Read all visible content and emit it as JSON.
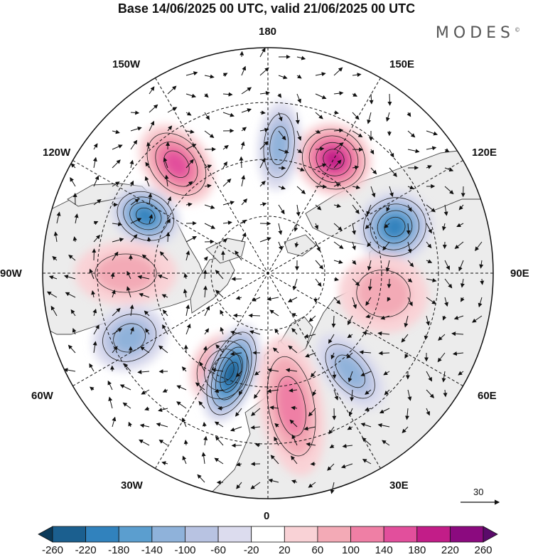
{
  "title": "Base 14/06/2025 00 UTC, valid 21/06/2025 00 UTC",
  "logo": "MODES",
  "logo_mark": "©",
  "longitude_labels": {
    "n180": "180",
    "w150": "150W",
    "e150": "150E",
    "w120": "120W",
    "e120": "120E",
    "w90": "90W",
    "e90": "90E",
    "w60": "60W",
    "e60": "60E",
    "w30": "30W",
    "e30": "30E",
    "s0": "0"
  },
  "reference_vector": "30",
  "colorbar": {
    "ticks": [
      "-260",
      "-220",
      "-180",
      "-140",
      "-100",
      "-60",
      "-20",
      "20",
      "60",
      "100",
      "140",
      "180",
      "220",
      "260"
    ],
    "colors": [
      "#0b3a5a",
      "#1b5f8f",
      "#3182bd",
      "#5b9ecf",
      "#8fb2da",
      "#b8c3e2",
      "#dcdcee",
      "#ffffff",
      "#f9d2d6",
      "#f3aab6",
      "#ef7fa5",
      "#e24f9c",
      "#c21d88",
      "#8b0a7f",
      "#5a0a6a"
    ]
  },
  "chart_data": {
    "type": "heatmap",
    "projection": "north polar stereographic",
    "variable_range": [
      -260,
      260
    ],
    "contour_interval": 40,
    "anomaly_centers": [
      {
        "name": "positive",
        "lon": 150,
        "level": 180
      },
      {
        "name": "negative",
        "lon": 110,
        "level": -180
      },
      {
        "name": "positive",
        "lon": -140,
        "level": 140
      },
      {
        "name": "negative",
        "lon": -115,
        "level": -180
      },
      {
        "name": "negative",
        "lon": 175,
        "level": -100
      },
      {
        "name": "positive",
        "lon": -25,
        "level": 140
      },
      {
        "name": "negative",
        "lon": -20,
        "level": -220
      },
      {
        "name": "positive",
        "lon": 10,
        "level": 100
      },
      {
        "name": "positive",
        "lon": 80,
        "level": 60
      },
      {
        "name": "negative",
        "lon": 40,
        "level": -100
      },
      {
        "name": "positive",
        "lon": -90,
        "level": 60
      },
      {
        "name": "negative",
        "lon": -65,
        "level": -100
      }
    ],
    "vector_reference": 30
  }
}
